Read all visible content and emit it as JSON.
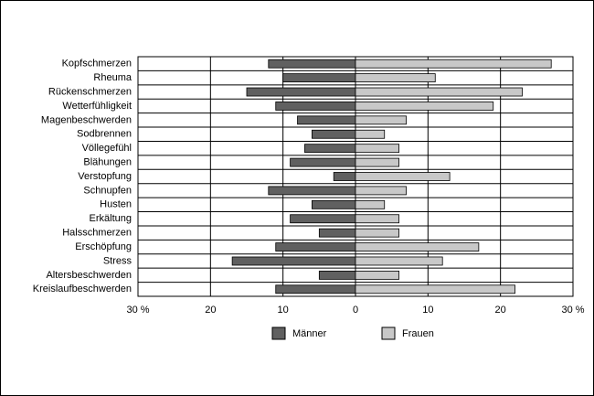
{
  "chart_data": {
    "type": "butterfly-bar",
    "categories": [
      "Kopfschmerzen",
      "Rheuma",
      "Rückenschmerzen",
      "Wetterfühligkeit",
      "Magenbeschwerden",
      "Sodbrennen",
      "Völlegefühl",
      "Blähungen",
      "Verstopfung",
      "Schnupfen",
      "Husten",
      "Erkältung",
      "Halsschmerzen",
      "Erschöpfung",
      "Stress",
      "Altersbeschwerden",
      "Kreislaufbeschwerden"
    ],
    "series": [
      {
        "name": "Männer",
        "color": "#606060",
        "values": [
          -12,
          -10,
          -15,
          -11,
          -8,
          -6,
          -7,
          -9,
          -3,
          -12,
          -6,
          -9,
          -5,
          -11,
          -17,
          -5,
          -11
        ]
      },
      {
        "name": "Frauen",
        "color": "#c8c8c8",
        "values": [
          27,
          11,
          23,
          19,
          7,
          4,
          6,
          6,
          13,
          7,
          4,
          6,
          6,
          17,
          12,
          6,
          22
        ]
      }
    ],
    "xlim": [
      -30,
      30
    ],
    "xticks": [
      {
        "value": -30,
        "label": "30 %"
      },
      {
        "value": -20,
        "label": "20"
      },
      {
        "value": -10,
        "label": "10"
      },
      0,
      10,
      20,
      {
        "value": 30,
        "label": "30 %"
      }
    ],
    "grid": true
  }
}
